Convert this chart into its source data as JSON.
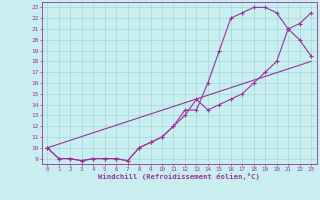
{
  "xlabel": "Windchill (Refroidissement éolien,°C)",
  "bg_color": "#c8eef0",
  "line_color": "#993399",
  "grid_color": "#a0d8dc",
  "xlim": [
    -0.5,
    23.5
  ],
  "ylim": [
    8.5,
    23.5
  ],
  "yticks": [
    9,
    10,
    11,
    12,
    13,
    14,
    15,
    16,
    17,
    18,
    19,
    20,
    21,
    22,
    23
  ],
  "xticks": [
    0,
    1,
    2,
    3,
    4,
    5,
    6,
    7,
    8,
    9,
    10,
    11,
    12,
    13,
    14,
    15,
    16,
    17,
    18,
    19,
    20,
    21,
    22,
    23
  ],
  "line1_x": [
    0,
    1,
    2,
    3,
    4,
    5,
    6,
    7,
    8,
    9,
    10,
    11,
    12,
    13,
    14,
    15,
    16,
    17,
    18,
    19,
    20,
    21,
    22,
    23
  ],
  "line1_y": [
    10,
    9,
    9,
    8.8,
    9,
    9,
    9,
    8.8,
    10,
    10.5,
    11,
    12,
    13.5,
    13.5,
    16,
    19,
    22,
    22.5,
    23,
    23,
    22.5,
    21,
    20,
    18.5
  ],
  "line2_x": [
    0,
    1,
    2,
    3,
    4,
    5,
    6,
    7,
    8,
    9,
    10,
    11,
    12,
    13,
    14,
    15,
    16,
    17,
    18,
    19,
    20,
    21,
    22,
    23
  ],
  "line2_y": [
    10,
    9,
    9,
    8.8,
    9,
    9,
    9,
    8.8,
    10,
    10.5,
    11,
    12,
    13,
    14.5,
    13.5,
    14,
    14.5,
    15,
    16,
    17,
    18,
    21,
    21.5,
    22.5
  ],
  "line3_x": [
    0,
    23
  ],
  "line3_y": [
    10,
    18
  ]
}
